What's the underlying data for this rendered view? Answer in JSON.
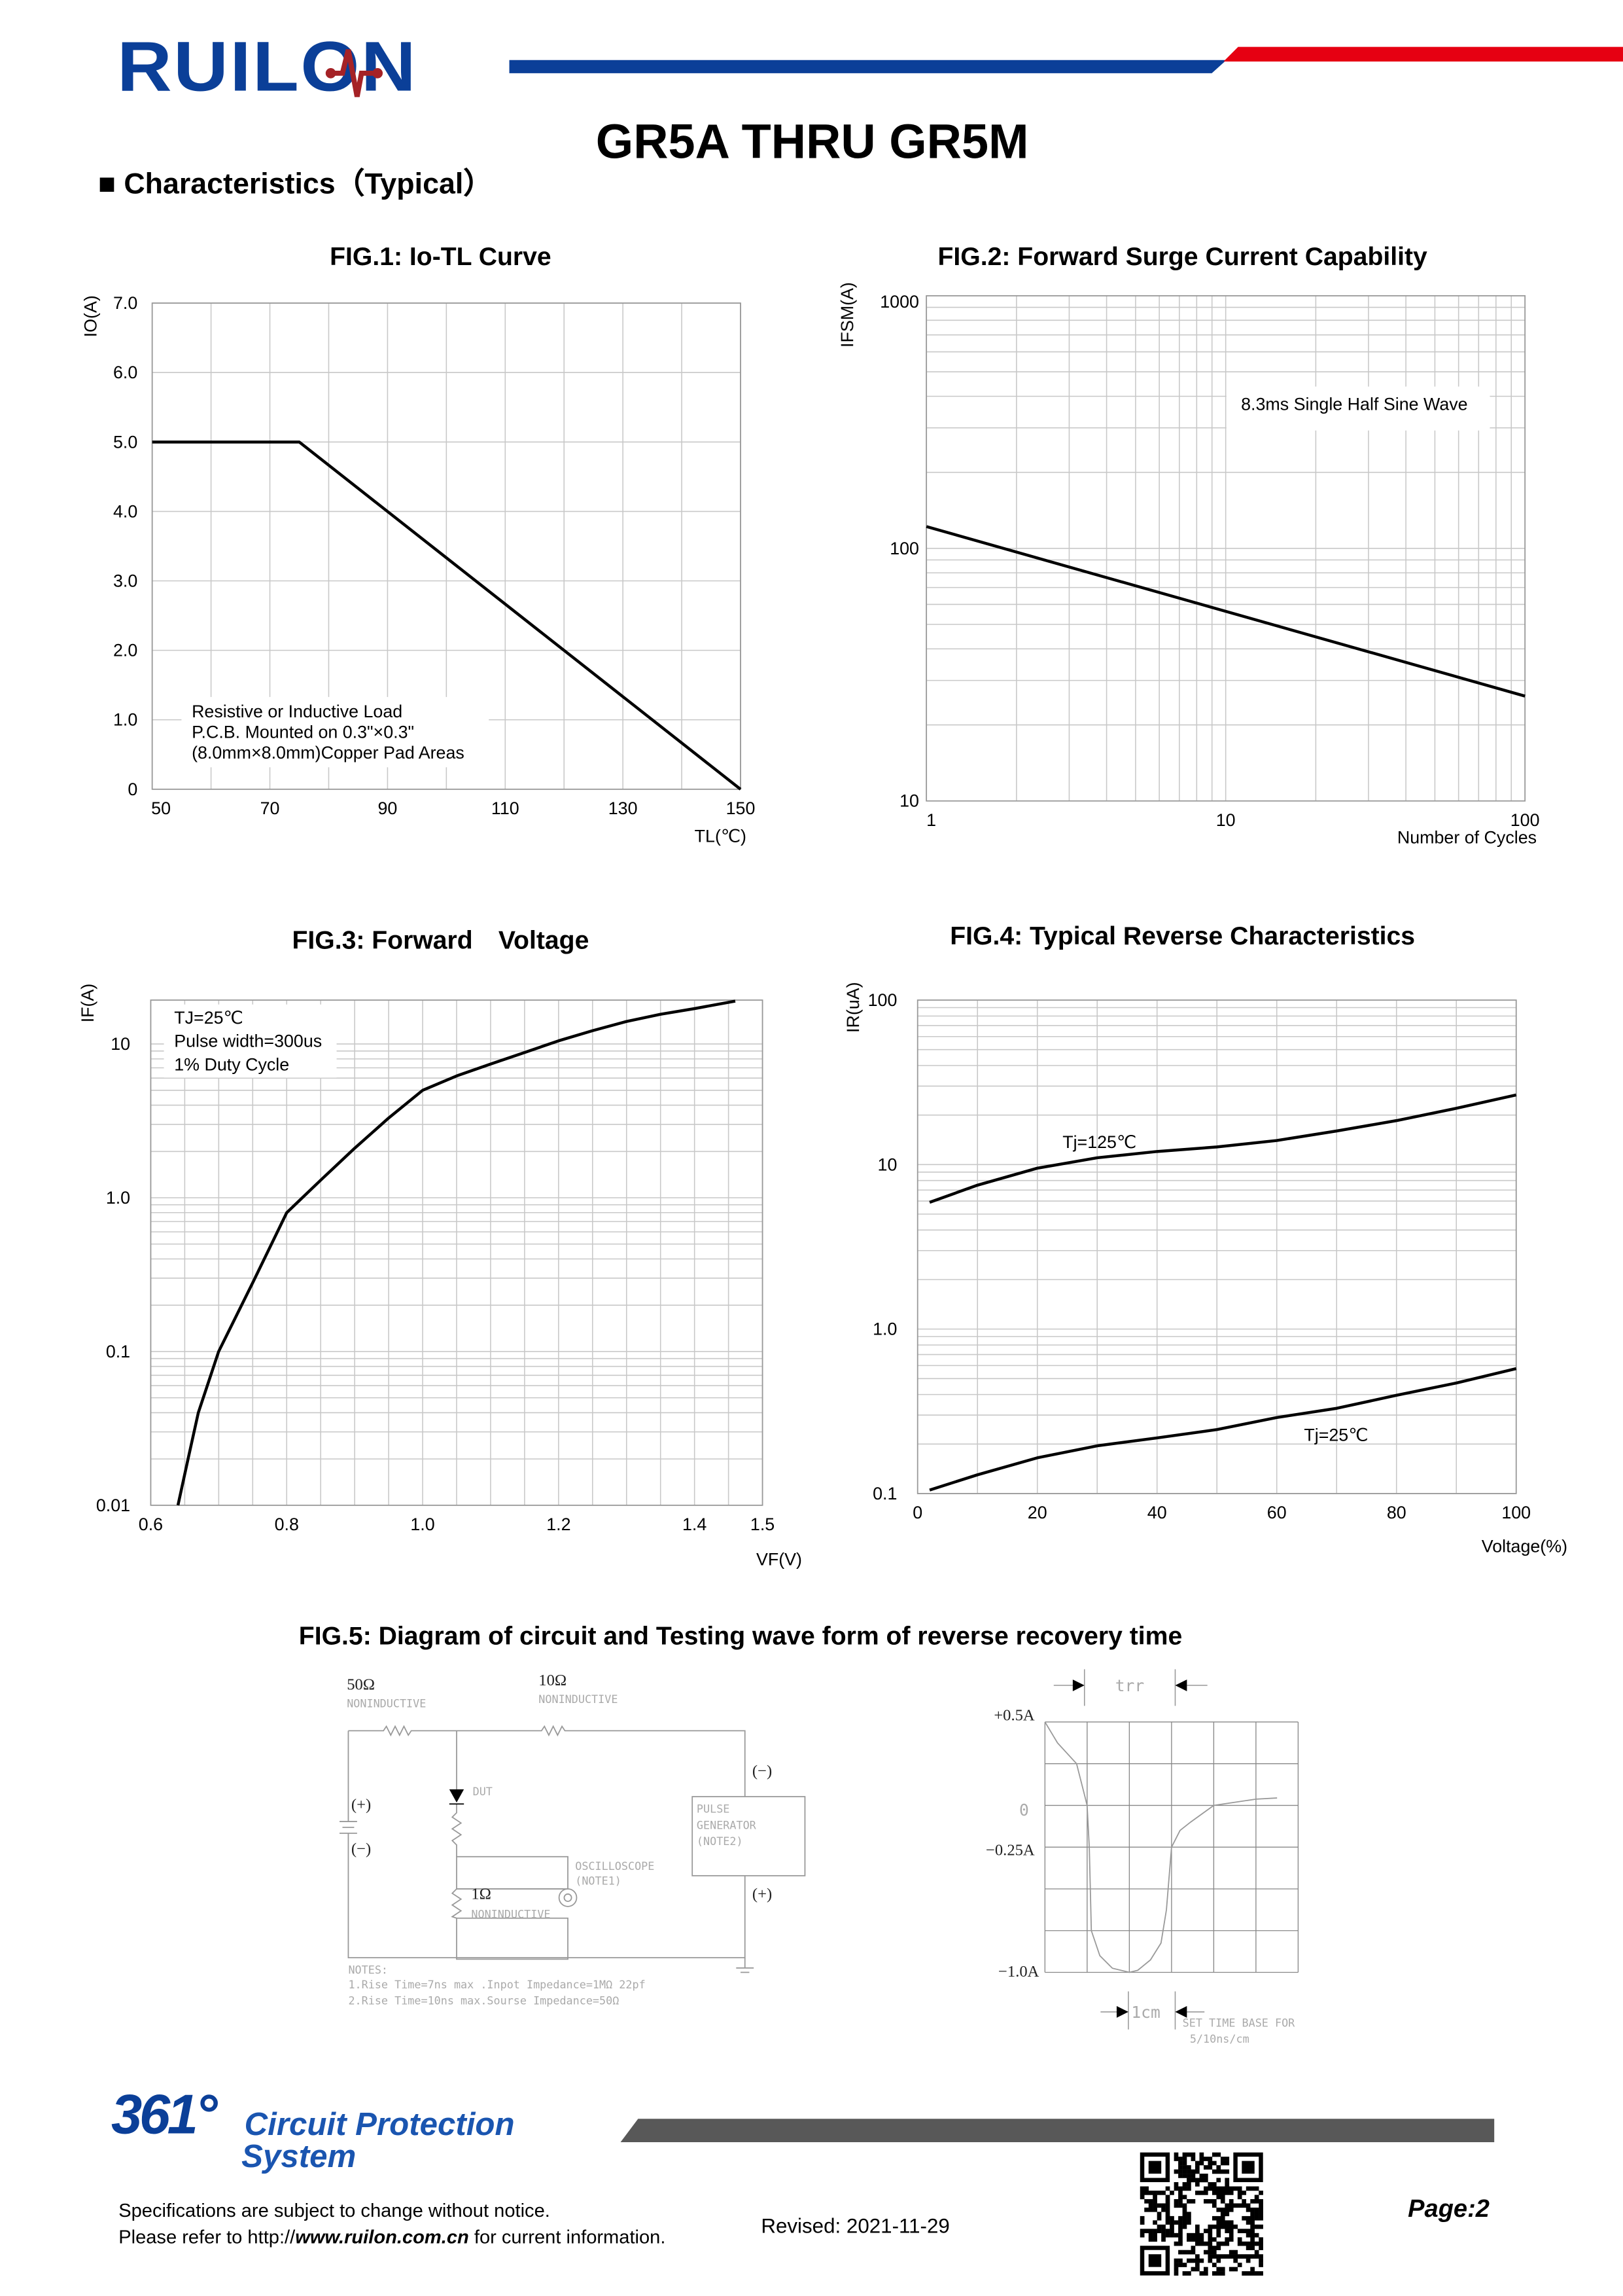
{
  "header": {
    "logo_text": "RUILON",
    "title": "GR5A THRU GR5M",
    "section": "■ Characteristics（Typical）",
    "colors": {
      "brand_blue": "#0b3f98",
      "brand_red": "#e60012",
      "logo_red": "#a52226"
    }
  },
  "figures": {
    "fig1_title": "FIG.1: Io-TL Curve",
    "fig2_title": "FIG.2: Forward Surge Current Capability",
    "fig3_title": "FIG.3: Forward　Voltage",
    "fig4_title": "FIG.4: Typical Reverse Characteristics",
    "fig5_title": "FIG.5: Diagram of circuit and Testing wave form of reverse recovery time"
  },
  "chart_data": [
    {
      "type": "line",
      "title": "FIG.1: Io-TL Curve",
      "xlabel": "TL(℃)",
      "ylabel": "IO(A)",
      "xlim": [
        50,
        150
      ],
      "ylim": [
        0,
        7
      ],
      "xscale": "linear",
      "yscale": "linear",
      "grid": true,
      "xticks": [
        "50",
        "70",
        "90",
        "110",
        "130",
        "150"
      ],
      "yticks": [
        "0",
        "1.0",
        "2.0",
        "3.0",
        "4.0",
        "5.0",
        "6.0",
        "7.0"
      ],
      "series": [
        {
          "name": "Io",
          "x": [
            50,
            75,
            150
          ],
          "y": [
            5,
            5,
            0
          ]
        }
      ],
      "annotations": [
        "Resistive or Inductive Load",
        "P.C.B. Mounted on 0.3\"×0.3\"",
        "(8.0mm×8.0mm)Copper Pad Areas"
      ]
    },
    {
      "type": "line",
      "title": "FIG.2: Forward Surge Current Capability",
      "xlabel": "Number of Cycles",
      "ylabel": "IFSM(A)",
      "xlim": [
        1,
        100
      ],
      "ylim": [
        10,
        1000
      ],
      "xscale": "log",
      "yscale": "log",
      "grid": true,
      "xticks": [
        "1",
        "10",
        "100"
      ],
      "yticks": [
        "10",
        "100",
        "1000"
      ],
      "series": [
        {
          "name": "IFSM",
          "x": [
            1,
            100
          ],
          "y": [
            122,
            26
          ]
        }
      ],
      "annotations": [
        "8.3ms Single Half Sine Wave"
      ]
    },
    {
      "type": "line",
      "title": "FIG.3: Forward Voltage",
      "xlabel": "VF(V)",
      "ylabel": "IF(A)",
      "xlim": [
        0.6,
        1.5
      ],
      "ylim": [
        0.01,
        19.3
      ],
      "xscale": "linear",
      "yscale": "log",
      "grid": true,
      "xticks": [
        "0.6",
        "0.8",
        "1.0",
        "1.2",
        "1.4",
        "1.5"
      ],
      "yticks": [
        "0.01",
        "0.1",
        "1.0",
        "10"
      ],
      "series": [
        {
          "name": "IF",
          "x": [
            0.64,
            0.655,
            0.67,
            0.7,
            0.75,
            0.8,
            0.85,
            0.9,
            0.95,
            1.0,
            1.05,
            1.1,
            1.15,
            1.2,
            1.25,
            1.3,
            1.35,
            1.4,
            1.46
          ],
          "y": [
            0.01,
            0.02,
            0.04,
            0.1,
            0.28,
            0.8,
            1.3,
            2.1,
            3.3,
            5.0,
            6.2,
            7.4,
            8.8,
            10.5,
            12.2,
            14.0,
            15.6,
            17.0,
            19.0
          ]
        }
      ],
      "annotations": [
        "TJ=25℃",
        "Pulse width=300us",
        "1% Duty Cycle"
      ]
    },
    {
      "type": "line",
      "title": "FIG.4: Typical Reverse Characteristics",
      "xlabel": "Voltage(%)",
      "ylabel": "IR(uA)",
      "xlim": [
        0,
        100
      ],
      "ylim": [
        0.1,
        100
      ],
      "xscale": "linear",
      "yscale": "log",
      "grid": true,
      "xticks": [
        "0",
        "20",
        "40",
        "60",
        "80",
        "100"
      ],
      "yticks": [
        "0.1",
        "1.0",
        "10",
        "100"
      ],
      "series": [
        {
          "name": "Tj=125℃",
          "x": [
            2,
            10,
            20,
            30,
            40,
            50,
            60,
            70,
            80,
            90,
            100
          ],
          "y": [
            5.9,
            7.5,
            9.5,
            11,
            12,
            12.8,
            14,
            16,
            18.5,
            22,
            26.5
          ]
        },
        {
          "name": "Tj=25℃",
          "x": [
            2,
            10,
            20,
            30,
            40,
            50,
            60,
            70,
            80,
            90,
            100
          ],
          "y": [
            0.105,
            0.13,
            0.165,
            0.195,
            0.218,
            0.245,
            0.29,
            0.33,
            0.396,
            0.47,
            0.574
          ]
        }
      ]
    }
  ],
  "fig5": {
    "r50": "50Ω",
    "r10": "10Ω",
    "r1": "1Ω",
    "noninductive": "NONINDUCTIVE",
    "dut": "DUT",
    "plus": "(+)",
    "minus": "(−)",
    "pulse_generator": [
      "PULSE",
      "GENERATOR",
      "(NOTE2)"
    ],
    "oscilloscope": [
      "OSCILLOSCOPE",
      "(NOTE1)"
    ],
    "notes": [
      "NOTES:",
      "1.Rise Time=7ns max .Inpot Impedance=1MΩ 22pf",
      "2.Rise Time=10ns max.Sourse Impedance=50Ω"
    ],
    "wave": {
      "y_labels": [
        "+0.5A",
        "0",
        "−0.25A",
        "−1.0A"
      ],
      "trr": "trr",
      "cm": "1cm",
      "time_base": [
        "SET TIME BASE FOR",
        "5/10ns/cm"
      ]
    }
  },
  "footer": {
    "logo_number": "361°",
    "logo_text_1": "Circuit Protection",
    "logo_text_2": "System",
    "disclaimer": "Specifications are subject to change without notice.",
    "refer_prefix": "Please refer to http://",
    "refer_url": "www.ruilon.com.cn",
    "refer_suffix": " for current information.",
    "revised": "Revised: 2021-11-29",
    "page": "Page:2"
  }
}
